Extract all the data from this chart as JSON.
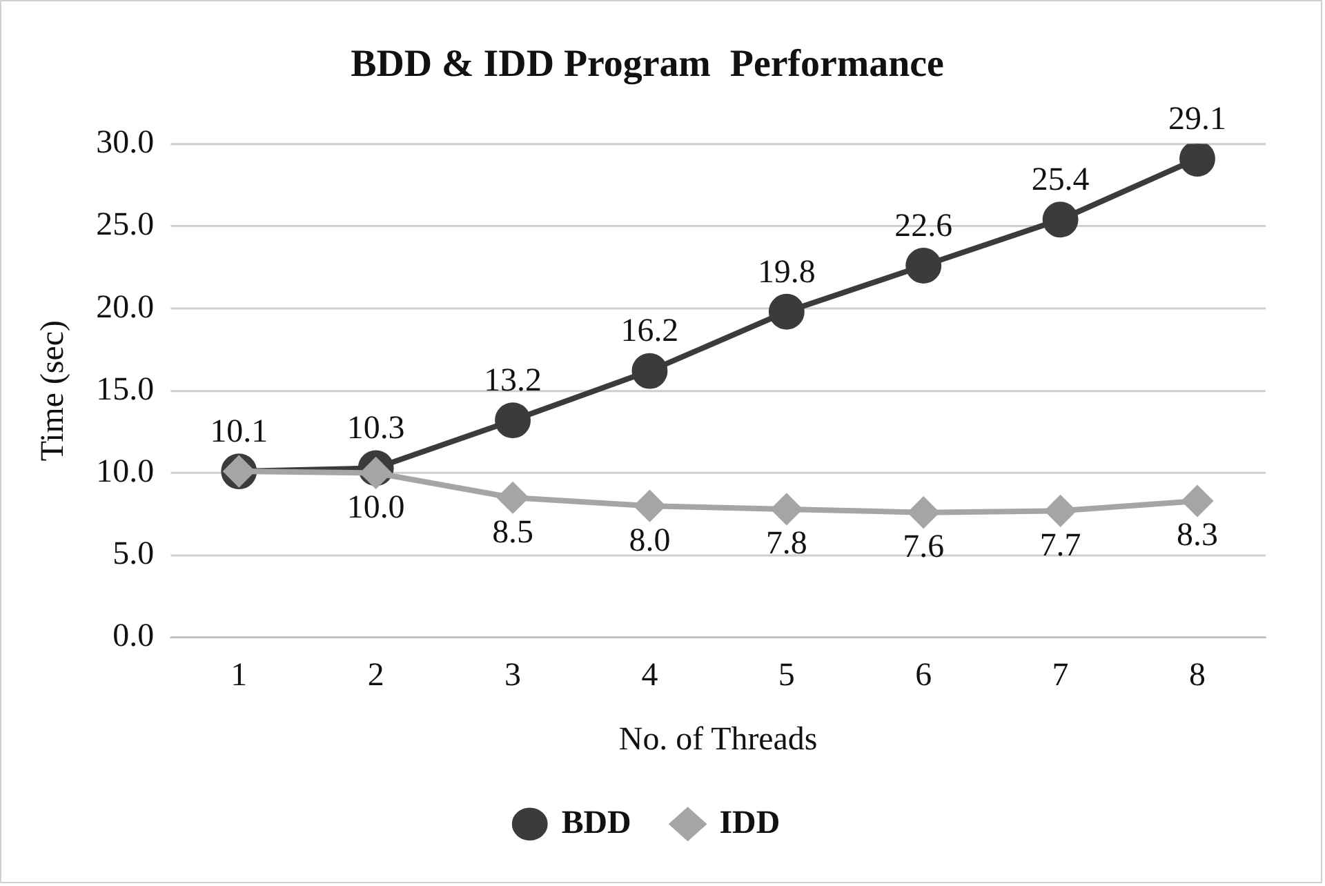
{
  "chart_data": {
    "type": "line",
    "title": "BDD & IDD Program  Performance",
    "xlabel": "No. of Threads",
    "ylabel": "Time (sec)",
    "categories": [
      "1",
      "2",
      "3",
      "4",
      "5",
      "6",
      "7",
      "8"
    ],
    "series": [
      {
        "name": "BDD",
        "color": "#3b3b3b",
        "marker": "circle",
        "values": [
          10.1,
          10.3,
          13.2,
          16.2,
          19.8,
          22.6,
          25.4,
          29.1
        ],
        "value_labels": [
          "10.1",
          "10.3",
          "13.2",
          "16.2",
          "19.8",
          "22.6",
          "25.4",
          "29.1"
        ]
      },
      {
        "name": "IDD",
        "color": "#a5a5a5",
        "marker": "diamond",
        "values": [
          10.1,
          10.0,
          8.5,
          8.0,
          7.8,
          7.6,
          7.7,
          8.3
        ],
        "value_labels": [
          null,
          "10.0",
          "8.5",
          "8.0",
          "7.8",
          "7.6",
          "7.7",
          "8.3"
        ]
      }
    ],
    "ylim": [
      0,
      30
    ],
    "yticks": [
      {
        "value": 0,
        "label": "0.0"
      },
      {
        "value": 5,
        "label": "5.0"
      },
      {
        "value": 10,
        "label": "10.0"
      },
      {
        "value": 15,
        "label": "15.0"
      },
      {
        "value": 20,
        "label": "20.0"
      },
      {
        "value": 25,
        "label": "25.0"
      },
      {
        "value": 30,
        "label": "30.0"
      }
    ],
    "grid": "y",
    "legend": "bottom"
  }
}
